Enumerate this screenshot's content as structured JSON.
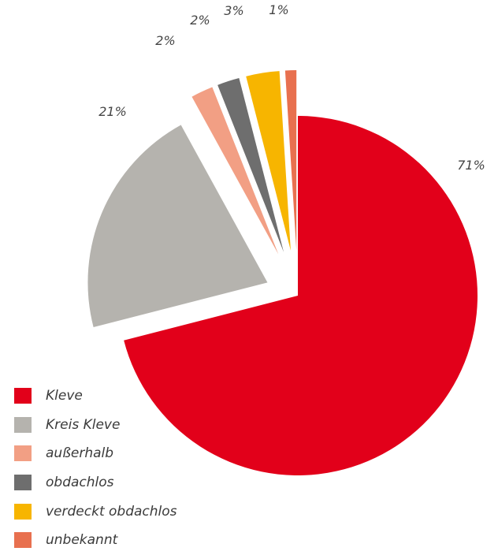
{
  "chart_data": {
    "type": "pie",
    "title": "",
    "legend_position": "bottom-left",
    "categories": [
      "Kleve",
      "Kreis Kleve",
      "außerhalb",
      "obdachlos",
      "verdeckt obdachlos",
      "unbekannt"
    ],
    "values": [
      71,
      21,
      2,
      2,
      3,
      1
    ],
    "data_labels": [
      "71%",
      "21%",
      "2%",
      "2%",
      "3%",
      "1%"
    ],
    "colors": [
      "#E2001A",
      "#B5B3AE",
      "#F29F84",
      "#6E6E6E",
      "#F7B500",
      "#E8704F"
    ],
    "exploded": true
  }
}
